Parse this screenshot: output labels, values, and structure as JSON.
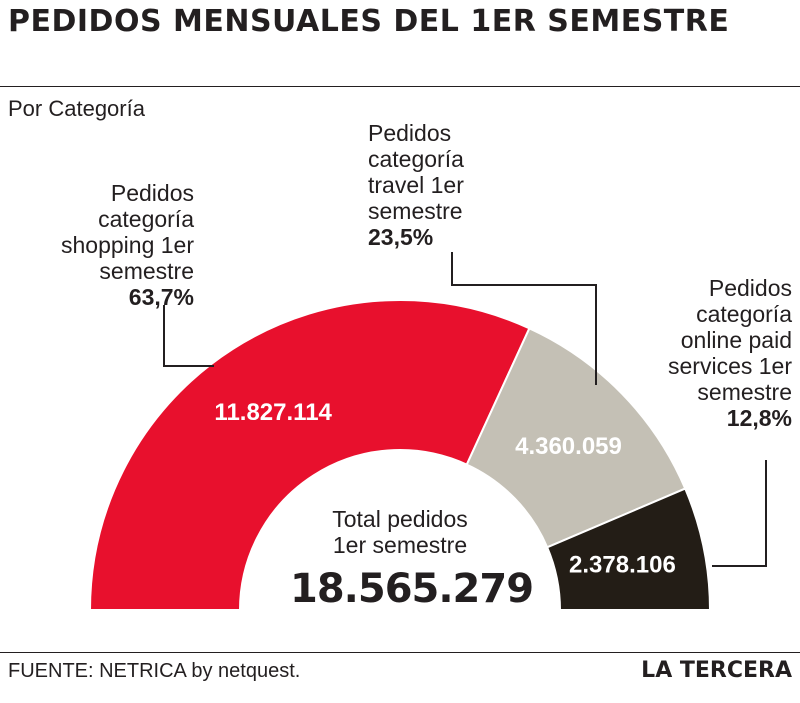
{
  "title": "PEDIDOS MENSUALES DEL 1ER SEMESTRE",
  "subtitle": "Por Categoría",
  "center": {
    "label_line1": "Total pedidos",
    "label_line2": "1er semestre",
    "value": "18.565.279"
  },
  "footer": {
    "source": "FUENTE: NETRICA by netquest.",
    "brand": "LA TERCERA"
  },
  "colors": {
    "shopping": "#e8102d",
    "travel": "#c4c0b5",
    "online": "#231d16",
    "text": "#231f20"
  },
  "chart_data": {
    "type": "pie",
    "subtype": "semi-donut",
    "total": 18565279,
    "total_label": "18.565.279",
    "slices": [
      {
        "name_lines": [
          "Pedidos",
          "categoría",
          "shopping 1er",
          "semestre"
        ],
        "value": 11827114,
        "value_label": "11.827.114",
        "percent": 63.7,
        "percent_label": "63,7%"
      },
      {
        "name_lines": [
          "Pedidos",
          "categoría",
          "travel 1er",
          "semestre"
        ],
        "value": 4360059,
        "value_label": "4.360.059",
        "percent": 23.5,
        "percent_label": "23,5%"
      },
      {
        "name_lines": [
          "Pedidos",
          "categoría",
          "online paid",
          "services 1er",
          "semestre"
        ],
        "value": 2378106,
        "value_label": "2.378.106",
        "percent": 12.8,
        "percent_label": "12,8%"
      }
    ]
  }
}
